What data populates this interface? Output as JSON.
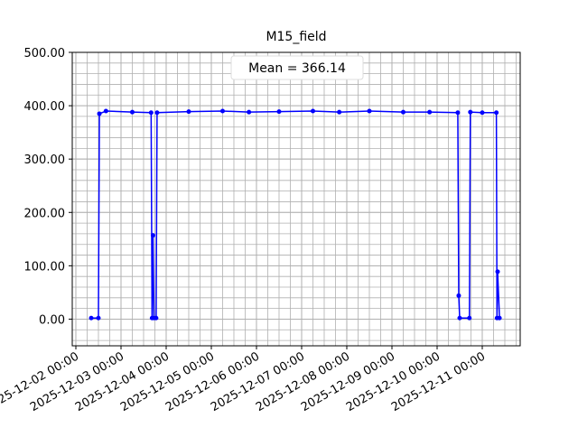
{
  "chart_data": {
    "type": "line",
    "title": "M15_field",
    "annotation": "Mean = 366.14",
    "x": [
      "2025-12-02 08:10",
      "2025-12-02 12:00",
      "2025-12-02 12:30",
      "2025-12-02 16:00",
      "2025-12-03 06:00",
      "2025-12-03 16:00",
      "2025-12-03 16:30",
      "2025-12-03 17:00",
      "2025-12-03 17:30",
      "2025-12-03 18:40",
      "2025-12-03 19:10",
      "2025-12-04 12:00",
      "2025-12-05 06:00",
      "2025-12-05 20:00",
      "2025-12-06 12:00",
      "2025-12-07 06:00",
      "2025-12-07 20:00",
      "2025-12-08 12:00",
      "2025-12-09 06:00",
      "2025-12-09 20:00",
      "2025-12-10 11:00",
      "2025-12-10 11:30",
      "2025-12-10 12:00",
      "2025-12-10 17:10",
      "2025-12-10 17:40",
      "2025-12-11 00:00",
      "2025-12-11 07:30",
      "2025-12-11 07:50",
      "2025-12-11 08:10",
      "2025-12-11 09:10"
    ],
    "series": [
      {
        "name": "M15_field",
        "color": "#0000ff",
        "values": [
          2,
          2,
          385,
          390,
          388,
          387,
          2,
          157,
          2,
          2,
          387,
          389,
          390,
          388,
          389,
          390,
          388,
          390,
          388,
          388,
          387,
          44,
          2,
          2,
          388,
          387,
          387,
          2,
          89,
          2
        ]
      }
    ],
    "xlim": [
      "2025-12-01 22:05",
      "2025-12-11 20:10"
    ],
    "xticks": [
      "2025-12-02 00:00",
      "2025-12-03 00:00",
      "2025-12-04 00:00",
      "2025-12-05 00:00",
      "2025-12-06 00:00",
      "2025-12-07 00:00",
      "2025-12-08 00:00",
      "2025-12-09 00:00",
      "2025-12-10 00:00",
      "2025-12-11 00:00"
    ],
    "ylim": [
      -50,
      500
    ],
    "yticks": [
      {
        "value": 0,
        "label": "0.00"
      },
      {
        "value": 100,
        "label": "100.00"
      },
      {
        "value": 200,
        "label": "200.00"
      },
      {
        "value": 300,
        "label": "300.00"
      },
      {
        "value": 400,
        "label": "400.00"
      },
      {
        "value": 500,
        "label": "500.00"
      }
    ],
    "grid": true
  }
}
